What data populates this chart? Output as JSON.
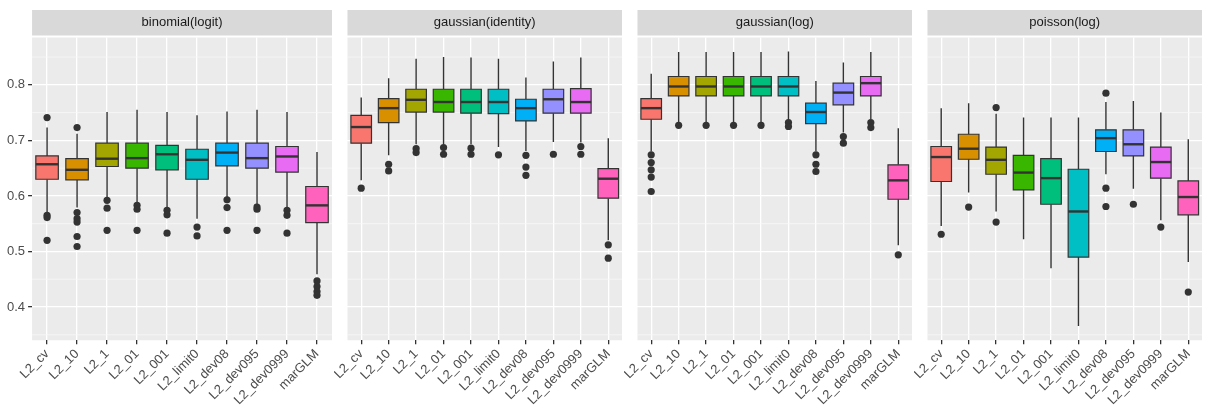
{
  "chart_data": [
    {
      "type": "box",
      "title": "binomial(logit)",
      "categories": [
        "L2_cv",
        "L2_10",
        "L2_1",
        "L2_01",
        "L2_001",
        "L2_limit0",
        "L2_dev08",
        "L2_dev095",
        "L2_dev0999",
        "marGLM"
      ],
      "colors": [
        "#f8766d",
        "#d89000",
        "#a3a500",
        "#39b600",
        "#00bf7d",
        "#00bfc4",
        "#00b0f6",
        "#9590ff",
        "#e76bf3",
        "#ff62bc"
      ],
      "ylim": [
        0.34,
        0.885
      ],
      "yticks": [
        0.4,
        0.5,
        0.6,
        0.7,
        0.8
      ],
      "grid": true,
      "boxes": [
        {
          "low": 0.569,
          "q1": 0.63,
          "median": 0.657,
          "q3": 0.672,
          "high": 0.723,
          "outliers": [
            0.741,
            0.565,
            0.561,
            0.52
          ]
        },
        {
          "low": 0.579,
          "q1": 0.629,
          "median": 0.647,
          "q3": 0.667,
          "high": 0.712,
          "outliers": [
            0.723,
            0.57,
            0.559,
            0.553,
            0.527,
            0.509
          ]
        },
        {
          "low": 0.598,
          "q1": 0.653,
          "median": 0.667,
          "q3": 0.695,
          "high": 0.751,
          "outliers": [
            0.592,
            0.578,
            0.538
          ]
        },
        {
          "low": 0.587,
          "q1": 0.65,
          "median": 0.668,
          "q3": 0.695,
          "high": 0.755,
          "outliers": [
            0.583,
            0.576,
            0.538
          ]
        },
        {
          "low": 0.579,
          "q1": 0.647,
          "median": 0.675,
          "q3": 0.691,
          "high": 0.751,
          "outliers": [
            0.574,
            0.566,
            0.533
          ]
        },
        {
          "low": 0.559,
          "q1": 0.63,
          "median": 0.665,
          "q3": 0.684,
          "high": 0.745,
          "outliers": [
            0.544,
            0.528
          ]
        },
        {
          "low": 0.598,
          "q1": 0.654,
          "median": 0.678,
          "q3": 0.695,
          "high": 0.752,
          "outliers": [
            0.593,
            0.579,
            0.538
          ]
        },
        {
          "low": 0.585,
          "q1": 0.65,
          "median": 0.668,
          "q3": 0.695,
          "high": 0.755,
          "outliers": [
            0.58,
            0.576,
            0.538
          ]
        },
        {
          "low": 0.579,
          "q1": 0.643,
          "median": 0.671,
          "q3": 0.689,
          "high": 0.751,
          "outliers": [
            0.574,
            0.565,
            0.533
          ]
        },
        {
          "low": 0.459,
          "q1": 0.552,
          "median": 0.583,
          "q3": 0.617,
          "high": 0.679,
          "outliers": [
            0.447,
            0.437,
            0.428,
            0.421
          ]
        }
      ]
    },
    {
      "type": "box",
      "title": "gaussian(identity)",
      "categories": [
        "L2_cv",
        "L2_10",
        "L2_1",
        "L2_01",
        "L2_001",
        "L2_limit0",
        "L2_dev08",
        "L2_dev095",
        "L2_dev0999",
        "marGLM"
      ],
      "colors": [
        "#f8766d",
        "#d89000",
        "#a3a500",
        "#39b600",
        "#00bf7d",
        "#00bfc4",
        "#00b0f6",
        "#9590ff",
        "#e76bf3",
        "#ff62bc"
      ],
      "ylim": [
        0.34,
        0.885
      ],
      "yticks": [
        0.4,
        0.5,
        0.6,
        0.7,
        0.8
      ],
      "grid": true,
      "tick_labels": "x",
      "boxes": [
        {
          "low": 0.628,
          "q1": 0.695,
          "median": 0.724,
          "q3": 0.745,
          "high": 0.777,
          "outliers": [
            0.614
          ]
        },
        {
          "low": 0.673,
          "q1": 0.732,
          "median": 0.758,
          "q3": 0.775,
          "high": 0.812,
          "outliers": [
            0.657,
            0.645
          ]
        },
        {
          "low": 0.693,
          "q1": 0.751,
          "median": 0.773,
          "q3": 0.792,
          "high": 0.847,
          "outliers": [
            0.685,
            0.678
          ]
        },
        {
          "low": 0.693,
          "q1": 0.751,
          "median": 0.769,
          "q3": 0.792,
          "high": 0.85,
          "outliers": [
            0.687,
            0.675
          ]
        },
        {
          "low": 0.693,
          "q1": 0.749,
          "median": 0.769,
          "q3": 0.792,
          "high": 0.849,
          "outliers": [
            0.686,
            0.675
          ]
        },
        {
          "low": 0.688,
          "q1": 0.748,
          "median": 0.769,
          "q3": 0.792,
          "high": 0.847,
          "outliers": [
            0.674
          ]
        },
        {
          "low": 0.681,
          "q1": 0.735,
          "median": 0.758,
          "q3": 0.774,
          "high": 0.813,
          "outliers": [
            0.673,
            0.652,
            0.637
          ]
        },
        {
          "low": 0.697,
          "q1": 0.749,
          "median": 0.774,
          "q3": 0.792,
          "high": 0.842,
          "outliers": [
            0.675
          ]
        },
        {
          "low": 0.696,
          "q1": 0.749,
          "median": 0.769,
          "q3": 0.793,
          "high": 0.849,
          "outliers": [
            0.689,
            0.675
          ]
        },
        {
          "low": 0.52,
          "q1": 0.596,
          "median": 0.631,
          "q3": 0.649,
          "high": 0.704,
          "outliers": [
            0.512,
            0.488
          ]
        }
      ]
    },
    {
      "type": "box",
      "title": "gaussian(log)",
      "categories": [
        "L2_cv",
        "L2_10",
        "L2_1",
        "L2_01",
        "L2_001",
        "L2_limit0",
        "L2_dev08",
        "L2_dev095",
        "L2_dev0999",
        "marGLM"
      ],
      "colors": [
        "#f8766d",
        "#d89000",
        "#a3a500",
        "#39b600",
        "#00bf7d",
        "#00bfc4",
        "#00b0f6",
        "#9590ff",
        "#e76bf3",
        "#ff62bc"
      ],
      "ylim": [
        0.34,
        0.885
      ],
      "yticks": [
        0.4,
        0.5,
        0.6,
        0.7,
        0.8
      ],
      "grid": true,
      "tick_labels": "x",
      "boxes": [
        {
          "low": 0.68,
          "q1": 0.738,
          "median": 0.758,
          "q3": 0.775,
          "high": 0.82,
          "outliers": [
            0.674,
            0.66,
            0.647,
            0.634,
            0.608
          ]
        },
        {
          "low": 0.732,
          "q1": 0.78,
          "median": 0.797,
          "q3": 0.815,
          "high": 0.859,
          "outliers": [
            0.727
          ]
        },
        {
          "low": 0.732,
          "q1": 0.78,
          "median": 0.797,
          "q3": 0.815,
          "high": 0.859,
          "outliers": [
            0.727
          ]
        },
        {
          "low": 0.732,
          "q1": 0.78,
          "median": 0.797,
          "q3": 0.815,
          "high": 0.859,
          "outliers": [
            0.727
          ]
        },
        {
          "low": 0.732,
          "q1": 0.78,
          "median": 0.797,
          "q3": 0.815,
          "high": 0.859,
          "outliers": [
            0.727
          ]
        },
        {
          "low": 0.736,
          "q1": 0.78,
          "median": 0.797,
          "q3": 0.815,
          "high": 0.86,
          "outliers": [
            0.732,
            0.725
          ]
        },
        {
          "low": 0.68,
          "q1": 0.73,
          "median": 0.751,
          "q3": 0.767,
          "high": 0.807,
          "outliers": [
            0.674,
            0.657,
            0.644
          ]
        },
        {
          "low": 0.714,
          "q1": 0.764,
          "median": 0.786,
          "q3": 0.803,
          "high": 0.84,
          "outliers": [
            0.707,
            0.695
          ]
        },
        {
          "low": 0.738,
          "q1": 0.78,
          "median": 0.803,
          "q3": 0.815,
          "high": 0.859,
          "outliers": [
            0.732,
            0.723
          ]
        },
        {
          "low": 0.511,
          "q1": 0.594,
          "median": 0.628,
          "q3": 0.656,
          "high": 0.722,
          "outliers": [
            0.494
          ]
        }
      ]
    },
    {
      "type": "box",
      "title": "poisson(log)",
      "categories": [
        "L2_cv",
        "L2_10",
        "L2_1",
        "L2_01",
        "L2_001",
        "L2_limit0",
        "L2_dev08",
        "L2_dev095",
        "L2_dev0999",
        "marGLM"
      ],
      "colors": [
        "#f8766d",
        "#d89000",
        "#a3a500",
        "#39b600",
        "#00bf7d",
        "#00bfc4",
        "#00b0f6",
        "#9590ff",
        "#e76bf3",
        "#ff62bc"
      ],
      "ylim": [
        0.34,
        0.885
      ],
      "yticks": [
        0.4,
        0.5,
        0.6,
        0.7,
        0.8
      ],
      "grid": true,
      "tick_labels": "x",
      "boxes": [
        {
          "low": 0.546,
          "q1": 0.626,
          "median": 0.67,
          "q3": 0.689,
          "high": 0.758,
          "outliers": [
            0.531
          ]
        },
        {
          "low": 0.606,
          "q1": 0.666,
          "median": 0.685,
          "q3": 0.711,
          "high": 0.767,
          "outliers": [
            0.58
          ]
        },
        {
          "low": 0.572,
          "q1": 0.639,
          "median": 0.665,
          "q3": 0.688,
          "high": 0.748,
          "outliers": [
            0.759,
            0.553
          ]
        },
        {
          "low": 0.522,
          "q1": 0.611,
          "median": 0.642,
          "q3": 0.673,
          "high": 0.741
        },
        {
          "low": 0.47,
          "q1": 0.585,
          "median": 0.632,
          "q3": 0.667,
          "high": 0.741
        },
        {
          "low": 0.366,
          "q1": 0.49,
          "median": 0.572,
          "q3": 0.648,
          "high": 0.741
        },
        {
          "low": 0.639,
          "q1": 0.68,
          "median": 0.704,
          "q3": 0.719,
          "high": 0.769,
          "outliers": [
            0.785,
            0.614,
            0.581
          ]
        },
        {
          "low": 0.613,
          "q1": 0.672,
          "median": 0.693,
          "q3": 0.719,
          "high": 0.771,
          "outliers": [
            0.585
          ]
        },
        {
          "low": 0.556,
          "q1": 0.632,
          "median": 0.661,
          "q3": 0.688,
          "high": 0.75,
          "outliers": [
            0.544
          ]
        },
        {
          "low": 0.481,
          "q1": 0.566,
          "median": 0.598,
          "q3": 0.627,
          "high": 0.702,
          "outliers": [
            0.427
          ]
        }
      ]
    }
  ]
}
